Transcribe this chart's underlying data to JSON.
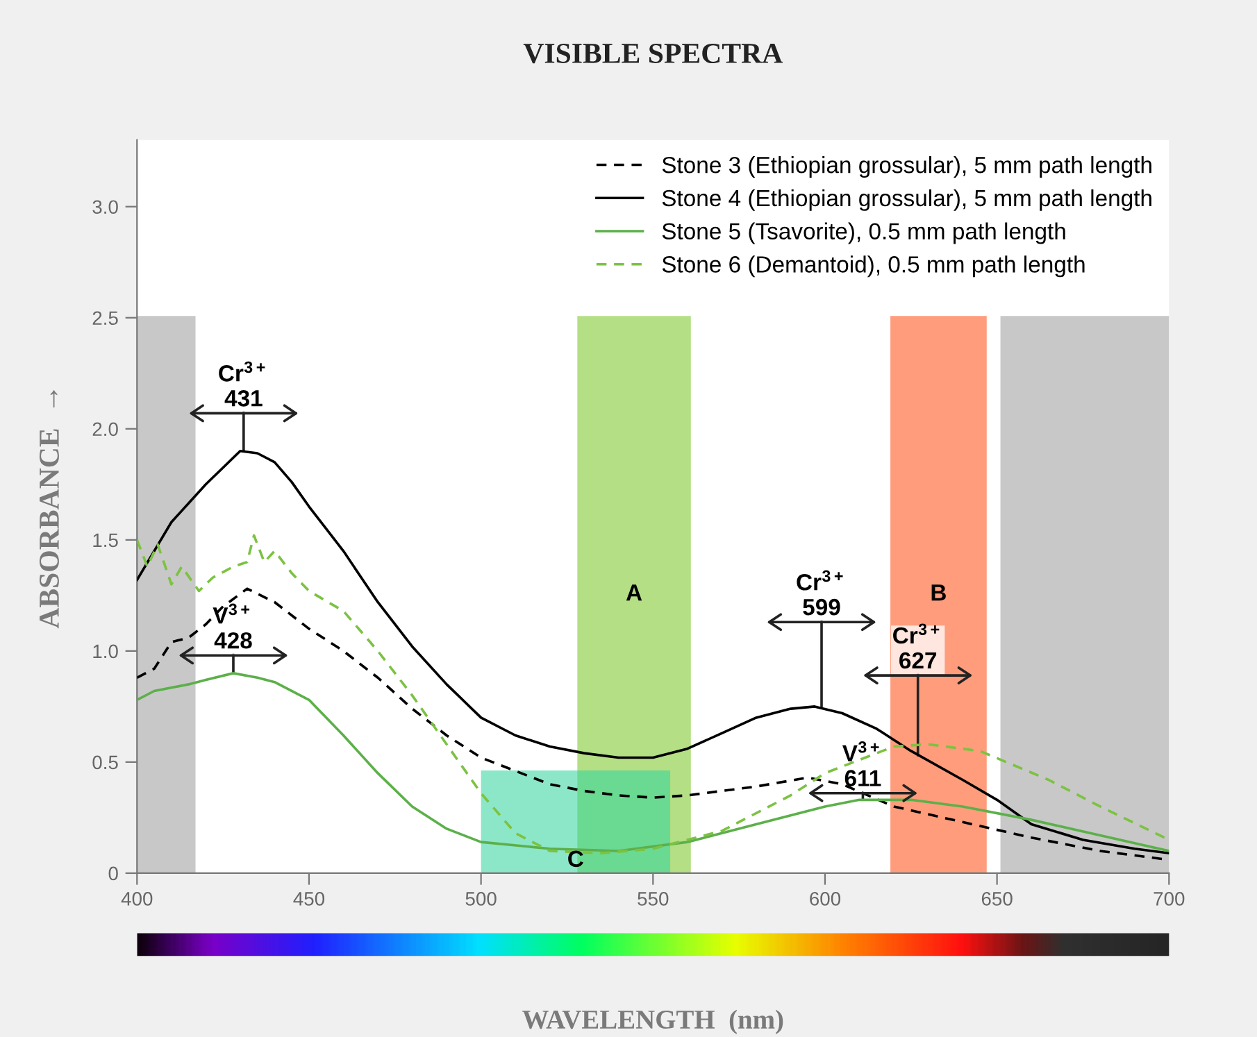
{
  "chart_data": {
    "type": "line",
    "title": "VISIBLE SPECTRA",
    "xlabel": "WAVELENGTH  (nm)",
    "ylabel": "ABSORBANCE  →",
    "xlim": [
      400,
      700
    ],
    "xticks": [
      400,
      450,
      500,
      550,
      600,
      650,
      700
    ],
    "ylim": [
      0,
      3.3
    ],
    "yticks": [
      {
        "value": 0,
        "label": "0"
      },
      0.5,
      {
        "value": 1,
        "label": "1.0"
      },
      1.5,
      {
        "value": 2,
        "label": "2.0"
      },
      2.5,
      {
        "value": 3,
        "label": "3.0"
      }
    ],
    "grid": false,
    "legend": "top right",
    "marker": "none",
    "series": [
      {
        "name": "Stone 3 (Ethiopian grossular), 5 mm path length",
        "color": "#000000",
        "line_style": "dashed",
        "x": [
          400,
          405,
          410,
          415,
          420,
          425,
          432,
          440,
          450,
          460,
          470,
          480,
          490,
          500,
          510,
          520,
          530,
          540,
          550,
          560,
          570,
          580,
          595,
          605,
          620,
          640,
          660,
          680,
          700
        ],
        "values": [
          0.88,
          0.92,
          1.04,
          1.06,
          1.12,
          1.2,
          1.28,
          1.22,
          1.1,
          1.0,
          0.88,
          0.74,
          0.62,
          0.52,
          0.46,
          0.4,
          0.37,
          0.35,
          0.34,
          0.35,
          0.37,
          0.39,
          0.43,
          0.4,
          0.3,
          0.23,
          0.16,
          0.1,
          0.06
        ]
      },
      {
        "name": "Stone 4 (Ethiopian grossular), 5 mm path length",
        "color": "#000000",
        "line_style": "solid",
        "x": [
          400,
          410,
          420,
          430,
          435,
          440,
          445,
          450,
          460,
          470,
          480,
          490,
          500,
          510,
          520,
          530,
          540,
          550,
          560,
          570,
          580,
          590,
          597,
          605,
          615,
          625,
          640,
          650,
          660,
          675,
          690,
          700
        ],
        "values": [
          1.32,
          1.58,
          1.75,
          1.9,
          1.89,
          1.85,
          1.76,
          1.65,
          1.45,
          1.22,
          1.02,
          0.85,
          0.7,
          0.62,
          0.57,
          0.54,
          0.52,
          0.52,
          0.56,
          0.63,
          0.7,
          0.74,
          0.75,
          0.72,
          0.65,
          0.55,
          0.42,
          0.33,
          0.22,
          0.15,
          0.11,
          0.09
        ]
      },
      {
        "name": "Stone 5 (Tsavorite), 0.5 mm path length",
        "color": "#5cb04a",
        "line_style": "solid",
        "x": [
          400,
          405,
          415,
          420,
          428,
          435,
          440,
          450,
          460,
          470,
          480,
          490,
          500,
          520,
          540,
          560,
          580,
          600,
          610,
          625,
          640,
          660,
          680,
          700
        ],
        "values": [
          0.78,
          0.82,
          0.85,
          0.87,
          0.9,
          0.88,
          0.86,
          0.78,
          0.62,
          0.45,
          0.3,
          0.2,
          0.14,
          0.11,
          0.1,
          0.14,
          0.22,
          0.3,
          0.33,
          0.33,
          0.3,
          0.24,
          0.17,
          0.1
        ]
      },
      {
        "name": "Stone 6 (Demantoid), 0.5 mm path length",
        "color": "#7cc242",
        "line_style": "dashed",
        "x": [
          400,
          403,
          406,
          410,
          413,
          418,
          422,
          428,
          432,
          434,
          437,
          440,
          445,
          450,
          460,
          470,
          480,
          490,
          500,
          510,
          520,
          535,
          550,
          570,
          590,
          600,
          620,
          630,
          645,
          665,
          680,
          700
        ],
        "values": [
          1.5,
          1.38,
          1.48,
          1.3,
          1.38,
          1.27,
          1.33,
          1.38,
          1.4,
          1.52,
          1.4,
          1.45,
          1.35,
          1.27,
          1.18,
          1.0,
          0.8,
          0.58,
          0.36,
          0.18,
          0.1,
          0.09,
          0.11,
          0.19,
          0.35,
          0.45,
          0.57,
          0.58,
          0.55,
          0.42,
          0.3,
          0.15
        ]
      }
    ],
    "bands": [
      {
        "axis": "x",
        "from": 400,
        "to": 417,
        "color": "#9a9a9a"
      },
      {
        "axis": "x",
        "from": 528,
        "to": 561,
        "label": "A",
        "color": "#77c520"
      },
      {
        "axis": "x",
        "from": 500,
        "to": 555,
        "label": "C",
        "color": "#2dd39b"
      },
      {
        "axis": "x",
        "from": 619,
        "to": 647,
        "label": "B",
        "color": "#ff4a10"
      },
      {
        "axis": "x",
        "from": 651,
        "to": 700,
        "label": null,
        "color": "#9a9a9a"
      }
    ],
    "annotations": [
      {
        "text": "Cr$^{3+}$\n431",
        "x": 431,
        "y": 1.9
      },
      {
        "text": "V$^{3+}$\n428",
        "x": 428,
        "y": 0.9
      },
      {
        "text": "Cr$^{3+}$\n599",
        "x": 599,
        "y": 0.75
      },
      {
        "text": "V$^{3+}$\n611",
        "x": 611,
        "y": 0.33
      },
      {
        "text": "Cr$^{3+}$\n627",
        "x": 627,
        "y": 0.53
      }
    ]
  }
}
